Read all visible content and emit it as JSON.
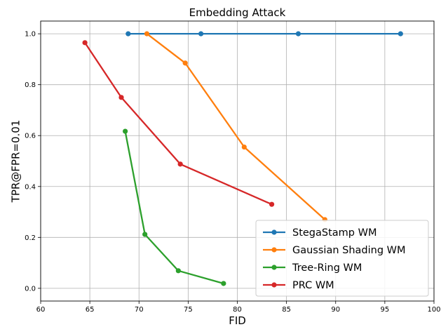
{
  "chart_data": {
    "type": "line",
    "title": "Embedding Attack",
    "xlabel": "FID",
    "ylabel": "TPR@FPR=0.01",
    "xlim": [
      60,
      100
    ],
    "ylim": [
      -0.05,
      1.05
    ],
    "xticks": [
      60,
      65,
      70,
      75,
      80,
      85,
      90,
      95,
      100
    ],
    "xtick_labels": [
      "60",
      "65",
      "70",
      "75",
      "80",
      "85",
      "90",
      "95",
      "100"
    ],
    "yticks": [
      0.0,
      0.2,
      0.4,
      0.6,
      0.8,
      1.0
    ],
    "ytick_labels": [
      "0.0",
      "0.2",
      "0.4",
      "0.6",
      "0.8",
      "1.0"
    ],
    "grid": true,
    "legend_position": "bottom-right",
    "series": [
      {
        "name": "StegaStamp WM",
        "color": "#1f77b4",
        "x": [
          68.9,
          76.3,
          86.2,
          96.6
        ],
        "y": [
          1.0,
          1.0,
          1.0,
          1.0
        ]
      },
      {
        "name": "Gaussian Shading WM",
        "color": "#ff7f0e",
        "x": [
          70.8,
          74.7,
          80.7,
          88.9
        ],
        "y": [
          1.0,
          0.885,
          0.555,
          0.27
        ]
      },
      {
        "name": "Tree-Ring WM",
        "color": "#2ca02c",
        "x": [
          68.6,
          70.6,
          74.0,
          78.6
        ],
        "y": [
          0.617,
          0.212,
          0.069,
          0.019
        ]
      },
      {
        "name": "PRC WM",
        "color": "#d62728",
        "x": [
          64.5,
          68.2,
          74.2,
          83.5
        ],
        "y": [
          0.965,
          0.75,
          0.488,
          0.33
        ]
      }
    ]
  }
}
